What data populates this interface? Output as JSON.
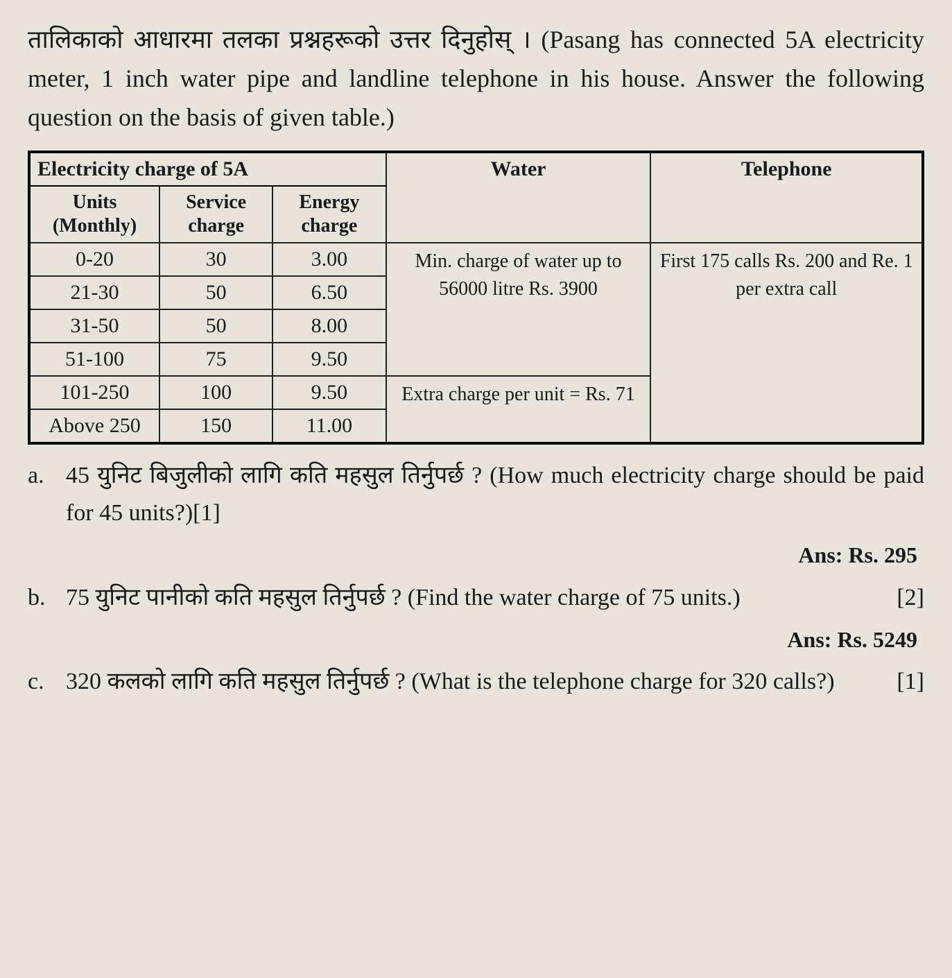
{
  "intro": "तालिकाको आधारमा तलका प्रश्नहरूको उत्तर दिनुहोस् । (Pasang has connected 5A electricity meter, 1 inch water pipe and landline telephone in his house. Answer the following question on the basis of given table.)",
  "table": {
    "elec_header": "Electricity charge of 5A",
    "water_header": "Water",
    "tel_header": "Telephone",
    "sub_units": "Units (Monthly)",
    "sub_service": "Service charge",
    "sub_energy": "Energy charge",
    "rows": [
      {
        "units": "0-20",
        "service": "30",
        "energy": "3.00"
      },
      {
        "units": "21-30",
        "service": "50",
        "energy": "6.50"
      },
      {
        "units": "31-50",
        "service": "50",
        "energy": "8.00"
      },
      {
        "units": "51-100",
        "service": "75",
        "energy": "9.50"
      },
      {
        "units": "101-250",
        "service": "100",
        "energy": "9.50"
      },
      {
        "units": "Above 250",
        "service": "150",
        "energy": "11.00"
      }
    ],
    "water_top": "Min. charge of water up to 56000 litre Rs. 3900",
    "water_bottom": "Extra charge per unit = Rs. 71",
    "tel_text": "First 175 calls Rs. 200 and Re. 1 per extra call"
  },
  "questions": {
    "a": {
      "label": "a.",
      "text": "45 युनिट बिजुलीको लागि कति महसुल तिर्नुपर्छ ? (How much electricity charge should be paid for 45 units?)[1]",
      "ans": "Ans: Rs. 295"
    },
    "b": {
      "label": "b.",
      "text_1": "75 युनिट पानीको कति महसुल तिर्नुपर्छ ? (Find the water charge of 75 units.)",
      "marks": "[2]",
      "ans": "Ans: Rs. 5249"
    },
    "c": {
      "label": "c.",
      "text": "320 कलको लागि कति महसुल तिर्नुपर्छ ? (What is the telephone charge for 320 calls?)",
      "marks": "[1]"
    }
  }
}
